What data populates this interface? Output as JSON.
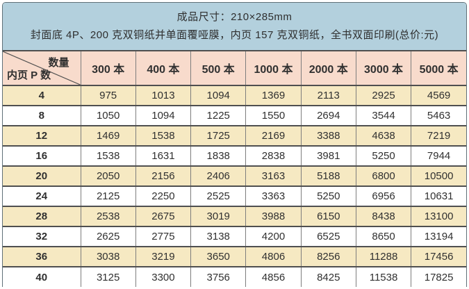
{
  "note": {
    "line1": "成品尺寸：210×285mm",
    "line2": "封面底 4P、200 克双铜纸并单面覆哑膜，内页 157 克双铜纸，全书双面印刷(总价:元)"
  },
  "table": {
    "corner": {
      "top_right": "数量",
      "bottom_left": "内页 P 数"
    },
    "columns": [
      "300 本",
      "400 本",
      "500 本",
      "1000 本",
      "2000 本",
      "3000 本",
      "5000 本"
    ],
    "rows": [
      {
        "p": "4",
        "values": [
          "975",
          "1013",
          "1094",
          "1369",
          "2113",
          "2925",
          "4569"
        ]
      },
      {
        "p": "8",
        "values": [
          "1050",
          "1094",
          "1225",
          "1550",
          "2694",
          "3544",
          "5463"
        ]
      },
      {
        "p": "12",
        "values": [
          "1469",
          "1538",
          "1725",
          "2169",
          "3388",
          "4638",
          "7219"
        ]
      },
      {
        "p": "16",
        "values": [
          "1538",
          "1631",
          "1838",
          "2838",
          "3981",
          "5250",
          "7944"
        ]
      },
      {
        "p": "20",
        "values": [
          "2050",
          "2156",
          "2406",
          "3163",
          "5188",
          "6800",
          "10500"
        ]
      },
      {
        "p": "24",
        "values": [
          "2125",
          "2250",
          "2525",
          "3363",
          "5250",
          "6956",
          "10631"
        ]
      },
      {
        "p": "28",
        "values": [
          "2538",
          "2675",
          "3019",
          "3988",
          "6150",
          "8438",
          "13100"
        ]
      },
      {
        "p": "32",
        "values": [
          "2625",
          "2775",
          "3138",
          "4200",
          "6525",
          "8650",
          "13194"
        ]
      },
      {
        "p": "36",
        "values": [
          "3038",
          "3219",
          "3650",
          "4806",
          "8256",
          "11288",
          "17456"
        ]
      },
      {
        "p": "40",
        "values": [
          "3125",
          "3300",
          "3756",
          "4856",
          "8425",
          "11538",
          "17825"
        ]
      }
    ]
  },
  "colors": {
    "note_bg": "#b3d0dd",
    "header_bg": "#f8dbcc",
    "row_alt_bg": "#f6e9c2",
    "row_bg": "#ffffff",
    "grid_line": "#4f4f4f",
    "column_line": "#7d7d7d",
    "text": "#303030"
  }
}
